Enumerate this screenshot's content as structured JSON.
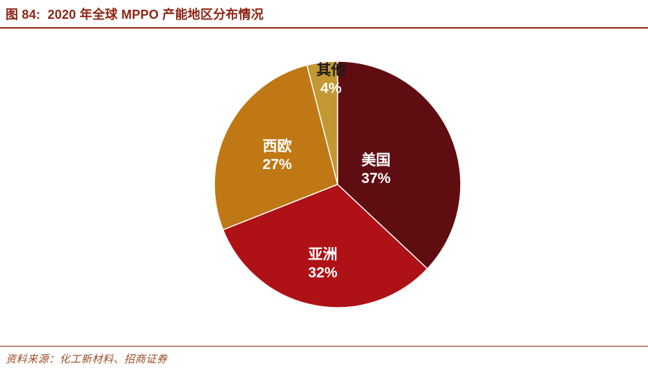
{
  "header": {
    "title": "图 84:  2020 年全球 MPPO 产能地区分布情况"
  },
  "footer": {
    "source": "资料来源：化工新材料、招商证券"
  },
  "colors": {
    "accent": "#8E2412",
    "source_text": "#9B4B28",
    "background": "#FFFFFF"
  },
  "chart_data": {
    "type": "pie",
    "title": "2020 年全球 MPPO 产能地区分布情况",
    "legend": "none",
    "labels_format": "name + percent, inside slices",
    "start_angle": 0,
    "direction": "clockwise",
    "slices": [
      {
        "label": "美国",
        "value": 37,
        "color": "#600D11",
        "label_color": "#FFFFFF",
        "pct_color": "#FFFFFF",
        "label_r": 0.34
      },
      {
        "label": "亚洲",
        "value": 32,
        "color": "#AE1116",
        "label_color": "#FFFFFF",
        "pct_color": "#FFFFFF",
        "label_r": 0.64
      },
      {
        "label": "西欧",
        "value": 27,
        "color": "#BF7813",
        "label_color": "#FFFFFF",
        "pct_color": "#FFFFFF",
        "label_r": 0.55
      },
      {
        "label": "其他",
        "value": 4,
        "color": "#C29833",
        "label_color": "#1A1A1A",
        "pct_color": "#FFFFFF",
        "label_r": 0.87,
        "label_angle": 356.5
      }
    ]
  }
}
